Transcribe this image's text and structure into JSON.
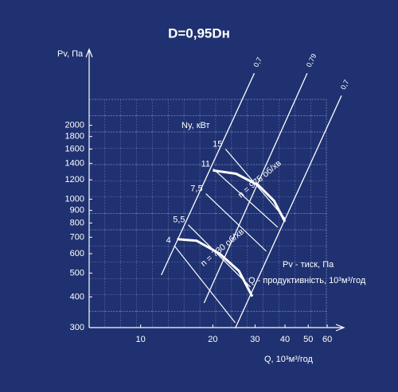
{
  "chart_data": {
    "type": "fan-curves",
    "title": "D=0,95Dн",
    "background": "#1f3170",
    "color": "#ffffff",
    "y_label": "Pv, Па",
    "x_label": "Q, 10³м³/год",
    "power_label": "Ny, кВт",
    "legend": [
      "Pv - тиск, Па",
      "Q - продуктивність, 10³м³/год"
    ],
    "log_x": true,
    "log_y": true,
    "xlim": [
      6.1,
      59.5
    ],
    "ylim": [
      300,
      2550
    ],
    "xticks": [
      10,
      20,
      30,
      40,
      50,
      60
    ],
    "yticks": [
      300,
      400,
      500,
      600,
      700,
      800,
      900,
      1000,
      1200,
      1400,
      1600,
      1800,
      2000
    ],
    "series": [
      {
        "name": "n = 975 об/хв",
        "x": [
          20,
          25,
          31,
          36,
          40
        ],
        "values": [
          1310,
          1270,
          1140,
          985,
          810
        ]
      },
      {
        "name": "n = 730 об/хв",
        "x": [
          14.2,
          17.1,
          21.3,
          25.7,
          29.2
        ],
        "values": [
          688,
          678,
          601,
          510,
          402
        ]
      }
    ],
    "efficiency_lines": [
      {
        "label": "0,7",
        "x": [
          12.2,
          29.8
        ],
        "y": [
          491,
          3260
        ]
      },
      {
        "label": "0,79",
        "x": [
          18.4,
          49.5
        ],
        "y": [
          378,
          3260
        ]
      },
      {
        "label": "0,7",
        "x": [
          24.8,
          68.8
        ],
        "y": [
          298,
          2640
        ]
      }
    ],
    "power_lines": [
      {
        "label": "15",
        "x": [
          22.6,
          40.2
        ],
        "y": [
          1600,
          829
        ]
      },
      {
        "label": "11",
        "x": [
          20.1,
          37.3
        ],
        "y": [
          1329,
          769
        ]
      },
      {
        "label": "7,5",
        "x": [
          18.7,
          33.4
        ],
        "y": [
          1053,
          614
        ]
      },
      {
        "label": "5,5",
        "x": [
          15.8,
          28.7
        ],
        "y": [
          787,
          439
        ]
      },
      {
        "label": "4",
        "x": [
          13.8,
          24.8
        ],
        "y": [
          648,
          314
        ]
      }
    ]
  }
}
